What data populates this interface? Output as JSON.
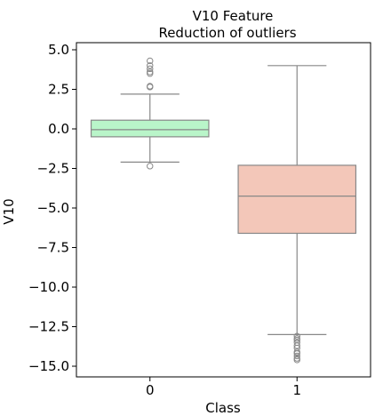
{
  "chart_data": {
    "type": "box",
    "title": "V10 Feature\nReduction of outliers",
    "xlabel": "Class",
    "ylabel": "V10",
    "categories": [
      "0",
      "1"
    ],
    "ylim": [
      -15.7,
      5.5
    ],
    "yticks": [
      5.0,
      2.5,
      0.0,
      -2.5,
      -5.0,
      -7.5,
      -10.0,
      -12.5,
      -15.0
    ],
    "ytick_labels": [
      "5.0",
      "2.5",
      "0.0",
      "−2.5",
      "−5.0",
      "−7.5",
      "−10.0",
      "−12.5",
      "−15.0"
    ],
    "grid": false,
    "boxes": [
      {
        "category": "0",
        "color": "#b9f5c9",
        "whisker_low": -2.1,
        "q1": -0.5,
        "median": -0.05,
        "q3": 0.55,
        "whisker_high": 2.2,
        "outliers": [
          4.3,
          4.0,
          3.8,
          3.6,
          3.5,
          2.7,
          2.65,
          -2.35
        ]
      },
      {
        "category": "1",
        "color": "#f3c7b9",
        "whisker_low": -13.0,
        "q1": -6.6,
        "median": -4.25,
        "q3": -2.3,
        "whisker_high": 4.0,
        "outliers": [
          -13.1,
          -13.25,
          -13.35,
          -13.5,
          -13.7,
          -13.85,
          -14.1,
          -14.2,
          -14.35,
          -14.5,
          -14.6
        ]
      }
    ]
  }
}
